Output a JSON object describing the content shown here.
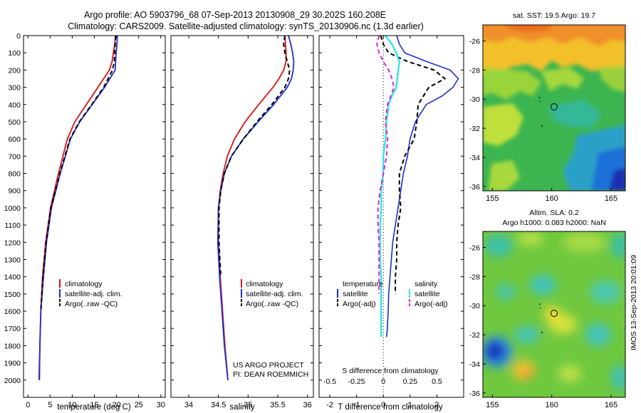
{
  "header": {
    "title_line1": "Argo profile: AO 5903796_68 07-Sep-2013 20130908_29 30.202S 160.208E",
    "title_line2": "Climatology: CARS2009. Satellite-adjusted climatology: synTS_20130906.nc (1.3d earlier)"
  },
  "colors": {
    "climatology": "#dd1111",
    "satellite": "#1a2fd0",
    "argo": "#000000",
    "sat_salinity": "#33e5e5",
    "argo_salinity": "#dd22dd"
  },
  "chart_data": [
    {
      "id": "temperature_profile",
      "type": "line",
      "xlabel": "temperature (deg C)",
      "ylabel": "",
      "xlim": [
        -1,
        31
      ],
      "ylim": [
        2100,
        0
      ],
      "xticks": [
        0,
        5,
        10,
        15,
        20,
        25,
        30
      ],
      "yticks": [
        0,
        100,
        200,
        300,
        400,
        500,
        600,
        700,
        800,
        900,
        1000,
        1100,
        1200,
        1300,
        1400,
        1500,
        1600,
        1700,
        1800,
        1900,
        2000
      ],
      "y": [
        0,
        50,
        100,
        150,
        200,
        300,
        400,
        500,
        600,
        800,
        1000,
        1200,
        1400,
        1600,
        1800,
        2000
      ],
      "series": [
        {
          "name": "climatology",
          "style": "solid",
          "color": "#dd1111",
          "values": [
            19.8,
            19.6,
            19.3,
            19.0,
            18.4,
            15.8,
            13.2,
            10.6,
            8.9,
            6.9,
            5.1,
            4.0,
            3.3,
            2.9,
            2.7,
            2.6
          ]
        },
        {
          "name": "satellite-adj. clim.",
          "style": "solid",
          "color": "#1a2fd0",
          "values": [
            20.2,
            20.1,
            19.9,
            19.8,
            19.7,
            17.3,
            14.5,
            11.7,
            9.6,
            7.3,
            5.3,
            4.2,
            3.5,
            2.9,
            2.7,
            2.5
          ]
        },
        {
          "name": "Argo(..raw -QC)",
          "style": "dashed",
          "color": "#000000",
          "values": [
            19.8,
            19.7,
            19.6,
            19.5,
            19.1,
            17.1,
            14.4,
            11.6,
            9.5,
            7.2,
            5.2,
            4.1,
            3.4,
            2.9,
            null,
            null
          ]
        }
      ]
    },
    {
      "id": "salinity_profile",
      "type": "line",
      "xlabel": "salinity",
      "xlim": [
        33.7,
        36.1
      ],
      "ylim": [
        2100,
        0
      ],
      "xticks": [
        34,
        34.5,
        35,
        35.5,
        36
      ],
      "y": [
        0,
        50,
        100,
        150,
        200,
        250,
        300,
        400,
        500,
        600,
        700,
        800,
        900,
        1000,
        1200,
        1400,
        1600,
        1800,
        2000
      ],
      "series": [
        {
          "name": "climatology",
          "style": "solid",
          "color": "#dd1111",
          "values": [
            35.62,
            35.63,
            35.64,
            35.64,
            35.6,
            35.52,
            35.42,
            35.18,
            34.95,
            34.77,
            34.65,
            34.58,
            34.53,
            34.5,
            34.5,
            34.53,
            34.57,
            34.61,
            34.66
          ]
        },
        {
          "name": "satellite-adj. clim.",
          "style": "solid",
          "color": "#1a2fd0",
          "values": [
            35.68,
            35.72,
            35.75,
            35.77,
            35.76,
            35.73,
            35.66,
            35.43,
            35.17,
            34.92,
            34.72,
            34.6,
            34.54,
            34.5,
            34.49,
            34.52,
            34.56,
            34.6,
            34.66
          ]
        },
        {
          "name": "Argo(..raw -QC)",
          "style": "dashed",
          "color": "#000000",
          "values": [
            35.62,
            35.6,
            35.62,
            35.66,
            35.7,
            35.68,
            35.62,
            35.4,
            35.15,
            34.92,
            34.72,
            34.6,
            34.54,
            34.51,
            34.51,
            34.54,
            null,
            null,
            null
          ]
        }
      ]
    },
    {
      "id": "difference_profile",
      "type": "line",
      "xlabel": "T difference from climatology",
      "xlabel_top": "S difference from climatology",
      "xlim": [
        -2.4,
        3.0
      ],
      "ylim": [
        2100,
        0
      ],
      "xticks_T": [
        -2,
        -1,
        0,
        1,
        2
      ],
      "xticks_S": [
        -0.5,
        -0.25,
        0,
        0.25,
        0.5
      ],
      "xticks_S_labels": [
        "-0.5",
        "-0.25",
        "0",
        "0.25",
        "0.5"
      ],
      "y": [
        0,
        50,
        100,
        150,
        200,
        250,
        300,
        350,
        400,
        500,
        600,
        700,
        800,
        900,
        1000,
        1100,
        1200,
        1300,
        1400,
        1500,
        1600,
        1700,
        1750
      ],
      "series": [
        {
          "name": "temperature satellite",
          "style": "solid",
          "color": "#1a2fd0",
          "values": [
            0.5,
            0.6,
            0.8,
            1.6,
            2.5,
            2.8,
            2.6,
            2.2,
            1.6,
            1.2,
            1.0,
            0.9,
            0.75,
            0.65,
            0.55,
            0.45,
            0.35,
            0.3,
            0.25,
            0.2,
            0.18,
            0.15,
            0.12
          ]
        },
        {
          "name": "temperature Argo(-adj)",
          "style": "dashed",
          "color": "#000000",
          "values": [
            -0.1,
            0.0,
            0.2,
            0.9,
            1.9,
            2.3,
            1.7,
            1.5,
            1.3,
            1.25,
            1.15,
            0.8,
            0.6,
            0.6,
            0.65,
            0.55,
            0.5,
            0.5,
            0.45,
            0.45,
            null,
            null,
            null
          ]
        },
        {
          "name": "salinity satellite",
          "style": "solid",
          "color": "#33e5e5",
          "values": [
            0.02,
            0.08,
            0.12,
            0.15,
            0.14,
            0.13,
            0.12,
            0.08,
            0.05,
            0.03,
            0.02,
            0.0,
            0.0,
            -0.02,
            -0.02,
            -0.03,
            -0.03,
            -0.03,
            -0.02,
            -0.02,
            -0.02,
            -0.02,
            -0.02
          ]
        },
        {
          "name": "salinity Argo(-adj)",
          "style": "dashed",
          "color": "#dd22dd",
          "values": [
            -0.04,
            -0.06,
            -0.04,
            0.0,
            0.05,
            0.08,
            0.1,
            0.07,
            0.04,
            0.02,
            0.04,
            0.03,
            0.0,
            -0.03,
            -0.05,
            -0.05,
            -0.04,
            -0.04,
            -0.04,
            -0.04,
            null,
            null,
            null
          ]
        }
      ]
    },
    {
      "id": "sst_map",
      "type": "heatmap",
      "title": "sat. SST: 19.5 Argo: 19.7",
      "xlim": [
        154.2,
        166.2
      ],
      "ylim": [
        -36.3,
        -24.9
      ],
      "xticks": [
        155,
        160,
        165
      ],
      "yticks": [
        -26,
        -28,
        -30,
        -32,
        -34,
        -36
      ],
      "argo_marker": {
        "lon": 160.208,
        "lat": -30.202
      }
    },
    {
      "id": "sla_map",
      "type": "heatmap",
      "title_line1": "Altim. SLA: 0.2",
      "title_line2": "Argo h1000: 0.083 h2000: NaN",
      "xlim": [
        154.2,
        166.2
      ],
      "ylim": [
        -36.3,
        -24.9
      ],
      "xticks": [
        155,
        160,
        165
      ],
      "yticks": [
        -26,
        -28,
        -30,
        -32,
        -34,
        -36
      ],
      "argo_marker": {
        "lon": 160.208,
        "lat": -30.202
      }
    }
  ],
  "legends": {
    "profiles": [
      "climatology",
      "satellite-adj. clim.",
      "Argo(..raw -QC)"
    ],
    "diff_temperature_header": "temperature",
    "diff_salinity_header": "salinity",
    "diff_temperature": [
      "satellite",
      "Argo(-adj)"
    ],
    "diff_salinity": [
      "satellite",
      "Argo(-adj)"
    ]
  },
  "credits": {
    "line1": "US ARGO PROJECT",
    "line2": "PI: DEAN ROEMMICH"
  },
  "side_label": "IMOS 13-Sep-2013 20:01:09"
}
